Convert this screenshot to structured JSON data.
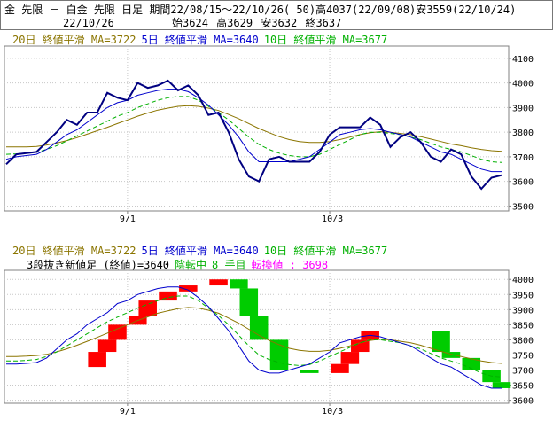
{
  "header": {
    "line1": "金 先限 － 白金 先限 日足 期間22/08/15～22/10/26( 50)高4037(22/09/08)安3559(22/10/24)",
    "date": "22/10/26",
    "open": "始3624",
    "high": "高3629",
    "low": "安3632",
    "close": "終3637"
  },
  "colors": {
    "ma20": "#8B7500",
    "ma5": "#0000CD",
    "ma10": "#00B000",
    "close": "#000080",
    "up": "#FF0000",
    "down": "#00CC00",
    "pink": "#FF00FF",
    "axis": "#808080"
  },
  "top_legend": {
    "ma20": "20日 終値平滑 MA=3722",
    "ma5": "5日 終値平滑 MA=3640",
    "ma10": "10日 終値平滑 MA=3677"
  },
  "bottom_legend": {
    "ma20": "20日 終値平滑 MA=3722",
    "ma5": "5日 終値平滑 MA=3640",
    "ma10": "10日 終値平滑 MA=3677",
    "sanko": "3段抜き新値足 (終値)=3640",
    "state": "陰転中",
    "hands": "8 手目",
    "turn": "転換値 : 3698"
  },
  "chart_data": [
    {
      "type": "line",
      "x_labels": [
        "9/1",
        "10/3"
      ],
      "x_label_index": [
        12,
        32
      ],
      "ylim": [
        3480,
        4150
      ],
      "y_ticks": [
        3500,
        3600,
        3700,
        3800,
        3900,
        4000,
        4100
      ],
      "grid": true,
      "series": [
        {
          "name": "close",
          "values": [
            3670,
            3710,
            3715,
            3720,
            3760,
            3800,
            3850,
            3830,
            3880,
            3880,
            3960,
            3940,
            3930,
            4000,
            3980,
            3990,
            4010,
            3970,
            3990,
            3950,
            3870,
            3880,
            3800,
            3690,
            3620,
            3600,
            3690,
            3700,
            3680,
            3680,
            3680,
            3720,
            3790,
            3820,
            3820,
            3820,
            3860,
            3830,
            3740,
            3780,
            3800,
            3760,
            3700,
            3680,
            3730,
            3710,
            3620,
            3570,
            3615,
            3625
          ]
        },
        {
          "name": "ma5",
          "values": [
            3690,
            3700,
            3705,
            3710,
            3730,
            3760,
            3790,
            3810,
            3840,
            3870,
            3900,
            3920,
            3930,
            3950,
            3960,
            3970,
            3975,
            3975,
            3965,
            3940,
            3910,
            3870,
            3830,
            3780,
            3720,
            3680,
            3680,
            3680,
            3680,
            3690,
            3700,
            3730,
            3760,
            3790,
            3800,
            3810,
            3815,
            3810,
            3800,
            3790,
            3780,
            3760,
            3740,
            3720,
            3710,
            3690,
            3670,
            3650,
            3640,
            3640
          ]
        },
        {
          "name": "ma10",
          "values": [
            3710,
            3712,
            3715,
            3718,
            3730,
            3745,
            3765,
            3785,
            3805,
            3825,
            3845,
            3865,
            3880,
            3900,
            3915,
            3930,
            3940,
            3945,
            3945,
            3930,
            3905,
            3880,
            3850,
            3815,
            3780,
            3750,
            3730,
            3715,
            3705,
            3700,
            3700,
            3710,
            3730,
            3750,
            3770,
            3790,
            3800,
            3800,
            3795,
            3790,
            3780,
            3770,
            3755,
            3740,
            3730,
            3720,
            3705,
            3690,
            3680,
            3677
          ]
        },
        {
          "name": "ma20",
          "values": [
            3740,
            3740,
            3740,
            3742,
            3748,
            3756,
            3766,
            3778,
            3792,
            3806,
            3820,
            3835,
            3850,
            3865,
            3878,
            3890,
            3898,
            3905,
            3908,
            3905,
            3898,
            3888,
            3872,
            3855,
            3835,
            3815,
            3798,
            3782,
            3770,
            3762,
            3758,
            3758,
            3762,
            3770,
            3780,
            3790,
            3798,
            3802,
            3800,
            3795,
            3790,
            3782,
            3772,
            3762,
            3752,
            3745,
            3737,
            3730,
            3725,
            3722
          ]
        }
      ]
    },
    {
      "type": "bar",
      "title": "3段抜き新値足 (終値)",
      "x_labels": [
        "9/1",
        "10/3"
      ],
      "x_label_index": [
        12,
        32
      ],
      "ylim": [
        3590,
        4030
      ],
      "y_ticks": [
        3600,
        3650,
        3700,
        3750,
        3800,
        3850,
        3900,
        3950,
        4000
      ],
      "grid": true,
      "sanko_bars": [
        {
          "dir": "up",
          "from": 3710,
          "to": 3760
        },
        {
          "dir": "up",
          "from": 3760,
          "to": 3800
        },
        {
          "dir": "up",
          "from": 3800,
          "to": 3850
        },
        {
          "dir": "up",
          "from": 3850,
          "to": 3880
        },
        {
          "dir": "up",
          "from": 3880,
          "to": 3930
        },
        {
          "dir": "up",
          "from": 3930,
          "to": 3960
        },
        {
          "dir": "up",
          "from": 3960,
          "to": 3980
        },
        {
          "dir": "up",
          "from": 3980,
          "to": 4000
        },
        {
          "dir": "down",
          "from": 4000,
          "to": 3970
        },
        {
          "dir": "down",
          "from": 3970,
          "to": 3880
        },
        {
          "dir": "down",
          "from": 3880,
          "to": 3800
        },
        {
          "dir": "down",
          "from": 3800,
          "to": 3700
        },
        {
          "dir": "down",
          "from": 3700,
          "to": 3690
        },
        {
          "dir": "up",
          "from": 3690,
          "to": 3720
        },
        {
          "dir": "up",
          "from": 3720,
          "to": 3760
        },
        {
          "dir": "up",
          "from": 3760,
          "to": 3800
        },
        {
          "dir": "up",
          "from": 3800,
          "to": 3830
        },
        {
          "dir": "down",
          "from": 3830,
          "to": 3760
        },
        {
          "dir": "down",
          "from": 3760,
          "to": 3740
        },
        {
          "dir": "down",
          "from": 3740,
          "to": 3700
        },
        {
          "dir": "down",
          "from": 3700,
          "to": 3660
        },
        {
          "dir": "down",
          "from": 3660,
          "to": 3640
        }
      ],
      "sanko_x_index": [
        9,
        10,
        11,
        13,
        14,
        16,
        18,
        21,
        23,
        24,
        25,
        27,
        30,
        33,
        34,
        35,
        36,
        43,
        44,
        46,
        48,
        49
      ],
      "series": [
        {
          "name": "ma5",
          "values": [
            3720,
            3720,
            3722,
            3725,
            3740,
            3770,
            3800,
            3820,
            3850,
            3870,
            3890,
            3920,
            3930,
            3950,
            3960,
            3970,
            3975,
            3975,
            3965,
            3940,
            3910,
            3870,
            3830,
            3780,
            3730,
            3700,
            3690,
            3690,
            3700,
            3710,
            3720,
            3740,
            3760,
            3790,
            3800,
            3810,
            3815,
            3810,
            3800,
            3790,
            3780,
            3760,
            3740,
            3720,
            3710,
            3690,
            3670,
            3650,
            3640,
            3640
          ]
        },
        {
          "name": "ma10",
          "values": [
            3730,
            3730,
            3732,
            3735,
            3745,
            3760,
            3780,
            3800,
            3820,
            3840,
            3860,
            3875,
            3890,
            3905,
            3918,
            3930,
            3940,
            3945,
            3945,
            3930,
            3905,
            3880,
            3850,
            3815,
            3780,
            3750,
            3735,
            3725,
            3718,
            3715,
            3718,
            3730,
            3745,
            3760,
            3775,
            3790,
            3800,
            3800,
            3795,
            3790,
            3780,
            3770,
            3755,
            3740,
            3730,
            3720,
            3705,
            3690,
            3680,
            3677
          ]
        },
        {
          "name": "ma20",
          "values": [
            3745,
            3745,
            3746,
            3748,
            3752,
            3760,
            3770,
            3782,
            3795,
            3808,
            3822,
            3836,
            3850,
            3864,
            3876,
            3888,
            3896,
            3903,
            3907,
            3905,
            3898,
            3888,
            3872,
            3855,
            3835,
            3815,
            3798,
            3784,
            3772,
            3765,
            3762,
            3762,
            3765,
            3772,
            3780,
            3790,
            3798,
            3802,
            3800,
            3795,
            3790,
            3782,
            3772,
            3762,
            3752,
            3745,
            3737,
            3730,
            3725,
            3722
          ]
        }
      ]
    }
  ]
}
